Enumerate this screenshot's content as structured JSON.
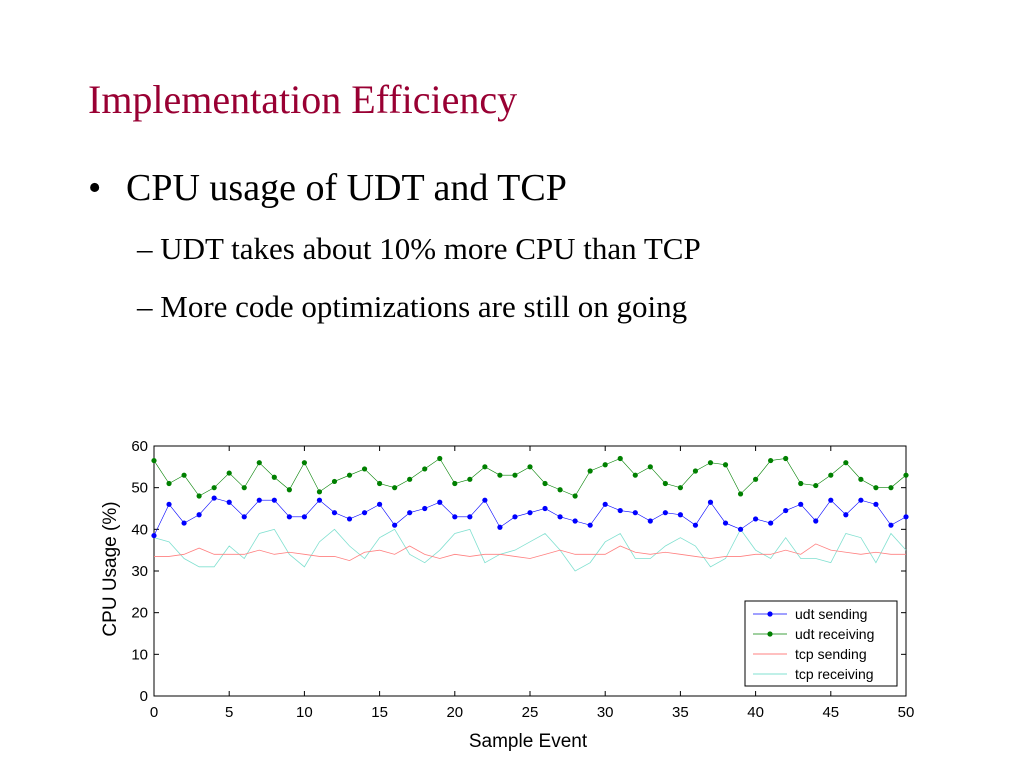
{
  "slide": {
    "title": "Implementation Efficiency",
    "bullet": "CPU usage of UDT and TCP",
    "subbullets": [
      "– UDT takes about 10% more CPU than TCP",
      "– More code optimizations are still on going"
    ],
    "bullet_symbol": "•"
  },
  "colors": {
    "title": "#990033",
    "udt_sending": "#0000ff",
    "udt_receiving": "#008000",
    "tcp_sending": "#ff8080",
    "tcp_receiving": "#80e0d0"
  },
  "chart_data": {
    "type": "line",
    "title": "",
    "xlabel": "Sample Event",
    "ylabel": "CPU Usage (%)",
    "xlim": [
      0,
      50
    ],
    "ylim": [
      0,
      60
    ],
    "x_ticks": [
      0,
      5,
      10,
      15,
      20,
      25,
      30,
      35,
      40,
      45,
      50
    ],
    "y_ticks": [
      0,
      10,
      20,
      30,
      40,
      50,
      60
    ],
    "grid": false,
    "legend_position": "bottom-right",
    "x": [
      0,
      1,
      2,
      3,
      4,
      5,
      6,
      7,
      8,
      9,
      10,
      11,
      12,
      13,
      14,
      15,
      16,
      17,
      18,
      19,
      20,
      21,
      22,
      23,
      24,
      25,
      26,
      27,
      28,
      29,
      30,
      31,
      32,
      33,
      34,
      35,
      36,
      37,
      38,
      39,
      40,
      41,
      42,
      43,
      44,
      45,
      46,
      47,
      48,
      49,
      50
    ],
    "series": [
      {
        "name": "udt sending",
        "marker": true,
        "values": [
          38.5,
          46,
          41.5,
          43.5,
          47.5,
          46.5,
          43,
          47,
          47,
          43,
          43,
          47,
          44,
          42.5,
          44,
          46,
          41,
          44,
          45,
          46.5,
          43,
          43,
          47,
          40.5,
          43,
          44,
          45,
          43,
          42,
          41,
          46,
          44.5,
          44,
          42,
          44,
          43.5,
          41,
          46.5,
          41.5,
          40,
          42.5,
          41.5,
          44.5,
          46,
          42,
          47,
          43.5,
          47,
          46,
          41,
          43
        ]
      },
      {
        "name": "udt receiving",
        "marker": true,
        "values": [
          56.5,
          51,
          53,
          48,
          50,
          53.5,
          50,
          56,
          52.5,
          49.5,
          56,
          49,
          51.5,
          53,
          54.5,
          51,
          50,
          52,
          54.5,
          57,
          51,
          52,
          55,
          53,
          53,
          55,
          51,
          49.5,
          48,
          54,
          55.5,
          57,
          53,
          55,
          51,
          50,
          54,
          56,
          55.5,
          48.5,
          52,
          56.5,
          57,
          51,
          50.5,
          53,
          56,
          52,
          50,
          50,
          53
        ]
      },
      {
        "name": "tcp sending",
        "marker": false,
        "values": [
          33.5,
          33.5,
          34,
          35.5,
          34,
          34,
          34,
          35,
          34,
          34.5,
          34,
          33.5,
          33.5,
          32.5,
          34.5,
          35,
          34,
          36,
          34,
          33,
          34,
          33.5,
          34,
          34,
          33.5,
          33,
          34,
          35,
          34,
          34,
          34,
          36,
          34.5,
          34,
          34.5,
          34,
          33.5,
          33,
          33.5,
          33.5,
          34,
          34,
          35,
          34,
          36.5,
          35,
          34.5,
          34,
          34.5,
          34,
          34
        ]
      },
      {
        "name": "tcp receiving",
        "marker": false,
        "values": [
          38,
          37,
          33,
          31,
          31,
          36,
          33,
          39,
          40,
          34,
          31,
          37,
          40,
          36,
          33,
          38,
          40,
          34,
          32,
          35,
          39,
          40,
          32,
          34,
          35,
          37,
          39,
          35,
          30,
          32,
          37,
          39,
          33,
          33,
          36,
          38,
          36,
          31,
          33,
          40,
          35,
          33,
          38,
          33,
          33,
          32,
          39,
          38,
          32,
          39,
          35
        ]
      }
    ]
  }
}
